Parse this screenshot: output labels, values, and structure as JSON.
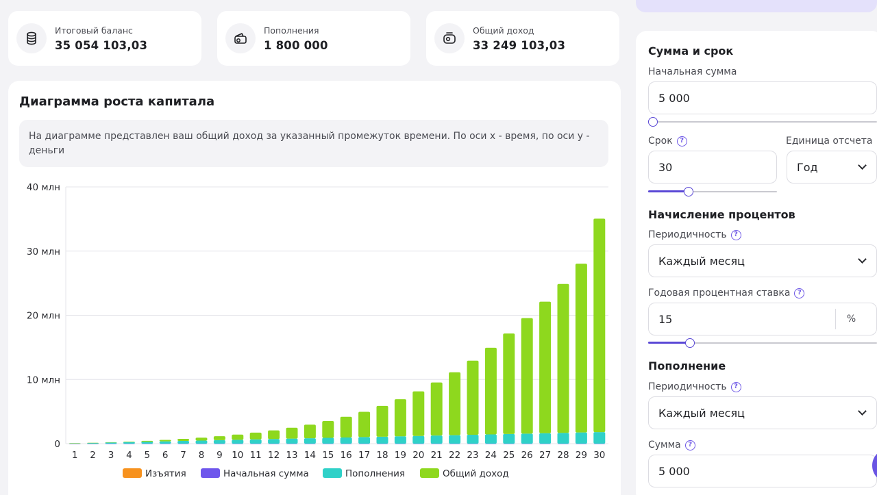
{
  "stats": [
    {
      "label": "Итоговый баланс",
      "value": "35 054 103,03",
      "icon": "coins-icon"
    },
    {
      "label": "Пополнения",
      "value": "1 800 000",
      "icon": "wallet-icon"
    },
    {
      "label": "Общий доход",
      "value": "33 249 103,03",
      "icon": "income-icon"
    }
  ],
  "chart_card": {
    "title": "Диаграмма роста капитала",
    "description": "На диаграмме представлен ваш общий доход за указанный промежуток времени. По оси x - время, по оси y - деньги"
  },
  "chart_data": {
    "type": "bar",
    "stacked": true,
    "categories": [
      "1",
      "2",
      "3",
      "4",
      "5",
      "6",
      "7",
      "8",
      "9",
      "10",
      "11",
      "12",
      "13",
      "14",
      "15",
      "16",
      "17",
      "18",
      "19",
      "20",
      "21",
      "22",
      "23",
      "24",
      "25",
      "26",
      "27",
      "28",
      "29",
      "30"
    ],
    "y_ticks": [
      "0",
      "10 млн",
      "20 млн",
      "30 млн",
      "40 млн"
    ],
    "ylim": [
      0,
      40000000
    ],
    "grid": true,
    "legend_position": "bottom",
    "series": [
      {
        "name": "Изъятия",
        "color": "#f7921e",
        "values": [
          0,
          0,
          0,
          0,
          0,
          0,
          0,
          0,
          0,
          0,
          0,
          0,
          0,
          0,
          0,
          0,
          0,
          0,
          0,
          0,
          0,
          0,
          0,
          0,
          0,
          0,
          0,
          0,
          0,
          0
        ]
      },
      {
        "name": "Начальная сумма",
        "color": "#6e56ec",
        "values": [
          5000,
          5000,
          5000,
          5000,
          5000,
          5000,
          5000,
          5000,
          5000,
          5000,
          5000,
          5000,
          5000,
          5000,
          5000,
          5000,
          5000,
          5000,
          5000,
          5000,
          5000,
          5000,
          5000,
          5000,
          5000,
          5000,
          5000,
          5000,
          5000,
          5000
        ]
      },
      {
        "name": "Пополнения",
        "color": "#2fd1c8",
        "values": [
          60000,
          120000,
          180000,
          240000,
          300000,
          360000,
          420000,
          480000,
          540000,
          600000,
          660000,
          720000,
          780000,
          840000,
          900000,
          960000,
          1020000,
          1080000,
          1140000,
          1200000,
          1260000,
          1320000,
          1380000,
          1440000,
          1500000,
          1560000,
          1620000,
          1680000,
          1740000,
          1800000
        ]
      },
      {
        "name": "Общий доход",
        "color": "#8ed81e",
        "values": [
          4500,
          15000,
          40000,
          80000,
          140000,
          220000,
          320000,
          450000,
          610000,
          810000,
          1050000,
          1340000,
          1690000,
          2110000,
          2610000,
          3220000,
          3940000,
          4790000,
          5780000,
          6940000,
          8270000,
          9800000,
          11550000,
          13500000,
          15650000,
          18000000,
          20500000,
          23200000,
          26300000,
          33249103
        ]
      }
    ]
  },
  "form": {
    "section_amount": "Сумма и срок",
    "initial_label": "Начальная сумма",
    "initial_value": "5 000",
    "initial_slider": 0.0,
    "term_label": "Срок",
    "term_value": "30",
    "term_slider": 0.3,
    "unit_label": "Единица отсчета",
    "unit_value": "Год",
    "section_interest": "Начисление процентов",
    "periodicity_label": "Периодичность",
    "periodicity_value": "Каждый месяц",
    "rate_label": "Годовая процентная ставка",
    "rate_value": "15",
    "rate_suffix": "%",
    "rate_slider": 0.17,
    "section_topup": "Пополнение",
    "topup_periodicity_label": "Периодичность",
    "topup_periodicity_value": "Каждый месяц",
    "topup_amount_label": "Сумма",
    "topup_amount_value": "5 000",
    "help_glyph": "?"
  }
}
